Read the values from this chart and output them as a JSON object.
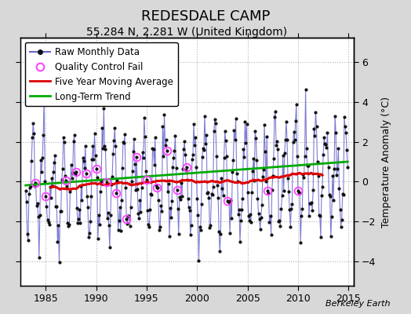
{
  "title": "REDESDALE CAMP",
  "subtitle": "55.284 N, 2.281 W (United Kingdom)",
  "ylabel": "Temperature Anomaly (°C)",
  "watermark": "Berkeley Earth",
  "xlim": [
    1982.5,
    2015.5
  ],
  "ylim": [
    -5.2,
    7.2
  ],
  "xticks": [
    1985,
    1990,
    1995,
    2000,
    2005,
    2010,
    2015
  ],
  "yticks": [
    -4,
    -2,
    0,
    2,
    4,
    6
  ],
  "background_color": "#d8d8d8",
  "plot_background_color": "#ffffff",
  "raw_line_color": "#6666cc",
  "raw_marker_color": "#111111",
  "qc_fail_color": "#ff44ff",
  "moving_avg_color": "#dd0000",
  "trend_color": "#00aa00",
  "seed": 12345,
  "start_year": 1983.0,
  "end_year": 2014.92,
  "n_months": 384,
  "title_fontsize": 13,
  "subtitle_fontsize": 10,
  "ylabel_fontsize": 9,
  "tick_fontsize": 9,
  "legend_fontsize": 8.5,
  "watermark_fontsize": 8
}
